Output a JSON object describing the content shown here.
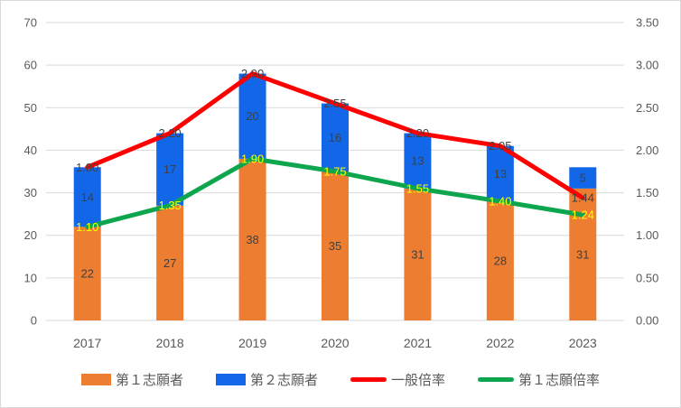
{
  "chart_data": {
    "type": "bar",
    "subtype": "stacked-bar-with-lines",
    "categories": [
      "2017",
      "2018",
      "2019",
      "2020",
      "2021",
      "2022",
      "2023"
    ],
    "bar_series": [
      {
        "key": "first-choice-applicants",
        "name": "第１志願者",
        "color": "#ED7D31",
        "label_color": "#404040",
        "values": [
          22,
          27,
          38,
          35,
          31,
          28,
          31
        ]
      },
      {
        "key": "second-choice-applicants",
        "name": "第２志願者",
        "color": "#1167E8",
        "label_color": "#404040",
        "values": [
          14,
          17,
          20,
          16,
          13,
          13,
          5
        ]
      }
    ],
    "line_series": [
      {
        "key": "general-ratio",
        "name": "一般倍率",
        "color": "#FF0000",
        "label_color": "#404040",
        "values": [
          1.8,
          2.2,
          2.9,
          2.55,
          2.2,
          2.05,
          1.44
        ],
        "labels": [
          "1.80",
          "2.20",
          "2.90",
          "2.55",
          "2.20",
          "2.05",
          "1.44"
        ]
      },
      {
        "key": "first-choice-ratio",
        "name": "第１志願倍率",
        "color": "#0DA64F",
        "label_color": "#FFFF00",
        "values": [
          1.1,
          1.35,
          1.9,
          1.75,
          1.55,
          1.4,
          1.24
        ],
        "labels": [
          "1.10",
          "1.35",
          "1.90",
          "1.75",
          "1.55",
          "1.40",
          "1.24"
        ]
      }
    ],
    "left_axis": {
      "min": 0,
      "max": 70,
      "ticks": [
        "0",
        "10",
        "20",
        "30",
        "40",
        "50",
        "60",
        "70"
      ]
    },
    "right_axis": {
      "min": 0,
      "max": 3.5,
      "ticks": [
        "0.00",
        "0.50",
        "1.00",
        "1.50",
        "2.00",
        "2.50",
        "3.00",
        "3.50"
      ]
    },
    "stacked": true,
    "grid": true,
    "legend_position": "bottom",
    "colors": {
      "gridline": "#D9D9D9",
      "tick_label": "#595959",
      "background": "#FFFFFF",
      "border": "#D9D9D9"
    }
  }
}
